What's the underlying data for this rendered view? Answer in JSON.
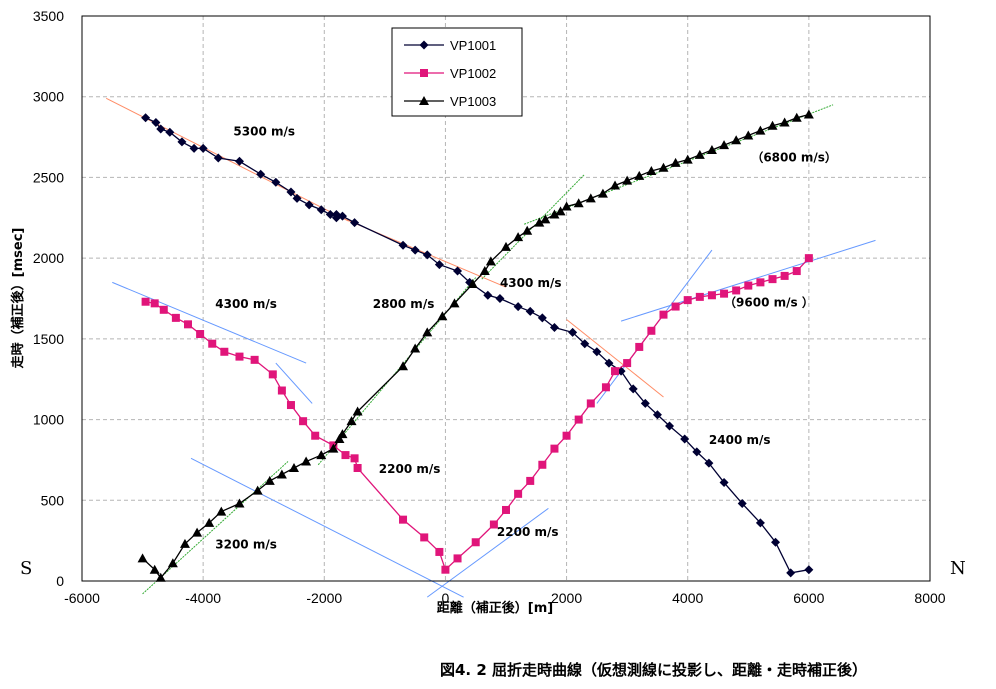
{
  "caption": "図4. 2 屈折走時曲線（仮想測線に投影し、距離・走時補正後）",
  "direction_left": "S",
  "direction_right": "N",
  "chart_data": {
    "type": "line",
    "xlabel": "距離（補正後）[m]",
    "ylabel": "走時（補正後）[msec]",
    "xlim": [
      -6000,
      8000
    ],
    "ylim": [
      0,
      3500
    ],
    "xticks": [
      -6000,
      -4000,
      -2000,
      0,
      2000,
      4000,
      6000,
      8000
    ],
    "yticks": [
      0,
      500,
      1000,
      1500,
      2000,
      2500,
      3000,
      3500
    ],
    "grid": true,
    "legend_position": "top-center",
    "series": [
      {
        "name": "VP1001",
        "marker": "diamond",
        "color": "#000033",
        "x": [
          -4950,
          -4780,
          -4700,
          -4550,
          -4350,
          -4150,
          -4000,
          -3750,
          -3400,
          -3050,
          -2800,
          -2550,
          -2450,
          -2250,
          -2050,
          -1900,
          -1800,
          -1800,
          -1700,
          -1500,
          -700,
          -500,
          -300,
          -100,
          200,
          400,
          700,
          900,
          1200,
          1400,
          1600,
          1800,
          2100,
          2300,
          2500,
          2700,
          2900,
          3100,
          3300,
          3500,
          3700,
          3950,
          4150,
          4350,
          4600,
          4900,
          5200,
          5450,
          5700,
          6000
        ],
        "y": [
          2870,
          2840,
          2800,
          2780,
          2720,
          2680,
          2680,
          2620,
          2600,
          2520,
          2470,
          2410,
          2370,
          2330,
          2300,
          2270,
          2270,
          2250,
          2260,
          2220,
          2080,
          2050,
          2020,
          1960,
          1920,
          1850,
          1770,
          1750,
          1700,
          1670,
          1630,
          1570,
          1540,
          1470,
          1420,
          1350,
          1300,
          1190,
          1100,
          1030,
          960,
          880,
          800,
          730,
          610,
          480,
          360,
          240,
          50,
          70
        ]
      },
      {
        "name": "VP1002",
        "marker": "square",
        "color": "#e0157a",
        "x": [
          -4950,
          -4800,
          -4650,
          -4450,
          -4250,
          -4050,
          -3850,
          -3650,
          -3400,
          -3150,
          -2850,
          -2700,
          -2550,
          -2350,
          -2150,
          -1850,
          -1650,
          -1500,
          -1450,
          -700,
          -350,
          -100,
          0,
          200,
          500,
          800,
          1000,
          1200,
          1400,
          1600,
          1800,
          2000,
          2200,
          2400,
          2650,
          2800,
          3000,
          3200,
          3400,
          3600,
          3800,
          4000,
          4200,
          4400,
          4600,
          4800,
          5000,
          5200,
          5400,
          5600,
          5800,
          6000
        ],
        "y": [
          1730,
          1720,
          1680,
          1630,
          1590,
          1530,
          1470,
          1420,
          1390,
          1370,
          1280,
          1180,
          1090,
          990,
          900,
          840,
          780,
          760,
          700,
          380,
          270,
          180,
          70,
          140,
          240,
          350,
          440,
          540,
          620,
          720,
          820,
          900,
          1000,
          1100,
          1200,
          1300,
          1350,
          1450,
          1550,
          1650,
          1700,
          1740,
          1760,
          1770,
          1780,
          1800,
          1830,
          1850,
          1870,
          1890,
          1920,
          2000
        ]
      },
      {
        "name": "VP1003",
        "marker": "triangle",
        "color": "#000000",
        "x": [
          -5000,
          -4800,
          -4700,
          -4500,
          -4300,
          -4100,
          -3900,
          -3700,
          -3400,
          -3100,
          -2900,
          -2700,
          -2500,
          -2300,
          -2050,
          -1850,
          -1750,
          -1700,
          -1550,
          -1450,
          -700,
          -500,
          -300,
          -50,
          150,
          450,
          650,
          750,
          1000,
          1200,
          1350,
          1550,
          1650,
          1800,
          1900,
          2000,
          2200,
          2400,
          2600,
          2800,
          3000,
          3200,
          3400,
          3600,
          3800,
          4000,
          4200,
          4400,
          4600,
          4800,
          5000,
          5200,
          5400,
          5600,
          5800,
          6000
        ],
        "y": [
          140,
          70,
          20,
          110,
          230,
          300,
          360,
          430,
          480,
          560,
          620,
          660,
          700,
          740,
          780,
          820,
          880,
          910,
          990,
          1050,
          1330,
          1440,
          1540,
          1640,
          1720,
          1840,
          1920,
          1980,
          2070,
          2130,
          2170,
          2220,
          2240,
          2270,
          2290,
          2320,
          2340,
          2370,
          2400,
          2450,
          2480,
          2510,
          2540,
          2560,
          2590,
          2610,
          2640,
          2670,
          2700,
          2730,
          2760,
          2790,
          2820,
          2840,
          2870,
          2890
        ]
      }
    ],
    "fit_lines": [
      {
        "x": [
          -5600,
          -1600
        ],
        "y": [
          2990,
          2230
        ],
        "color": "#ff8c66"
      },
      {
        "x": [
          -1900,
          1000
        ],
        "y": [
          2280,
          1820
        ],
        "color": "#ff8c66"
      },
      {
        "x": [
          2000,
          3600
        ],
        "y": [
          1620,
          1140
        ],
        "color": "#ff8c66"
      },
      {
        "x": [
          -5500,
          -2300
        ],
        "y": [
          1850,
          1350
        ],
        "color": "#6699ff"
      },
      {
        "x": [
          -2800,
          -2200
        ],
        "y": [
          1350,
          1100
        ],
        "color": "#6699ff"
      },
      {
        "x": [
          -4200,
          300
        ],
        "y": [
          760,
          -100
        ],
        "color": "#6699ff"
      },
      {
        "x": [
          -300,
          1700
        ],
        "y": [
          -100,
          450
        ],
        "color": "#6699ff"
      },
      {
        "x": [
          2900,
          7100
        ],
        "y": [
          1610,
          2110
        ],
        "color": "#6699ff"
      },
      {
        "x": [
          2500,
          4400
        ],
        "y": [
          1100,
          2050
        ],
        "color": "#6699ff"
      },
      {
        "x": [
          -5000,
          -2600
        ],
        "y": [
          -80,
          740
        ],
        "color": "#33aa33"
      },
      {
        "x": [
          -2100,
          500
        ],
        "y": [
          720,
          1880
        ],
        "color": "#33aa33"
      },
      {
        "x": [
          600,
          2300
        ],
        "y": [
          1870,
          2520
        ],
        "color": "#33aa33"
      },
      {
        "x": [
          1300,
          6400
        ],
        "y": [
          2210,
          2950
        ],
        "color": "#33aa33"
      }
    ],
    "annotations": [
      {
        "text": "5300 m/s",
        "x": -3500,
        "y": 2760
      },
      {
        "text": "（6800 m/s）",
        "x": 5050,
        "y": 2600
      },
      {
        "text": "4300 m/s",
        "x": 900,
        "y": 1820
      },
      {
        "text": "2800 m/s",
        "x": -1200,
        "y": 1690
      },
      {
        "text": "4300 m/s",
        "x": -3800,
        "y": 1690
      },
      {
        "text": "（9600 m/s ）",
        "x": 4600,
        "y": 1700
      },
      {
        "text": "2400 m/s",
        "x": 4350,
        "y": 850
      },
      {
        "text": "2200 m/s",
        "x": -1100,
        "y": 670
      },
      {
        "text": "2200 m/s",
        "x": 850,
        "y": 280
      },
      {
        "text": "3200 m/s",
        "x": -3800,
        "y": 200
      }
    ]
  }
}
